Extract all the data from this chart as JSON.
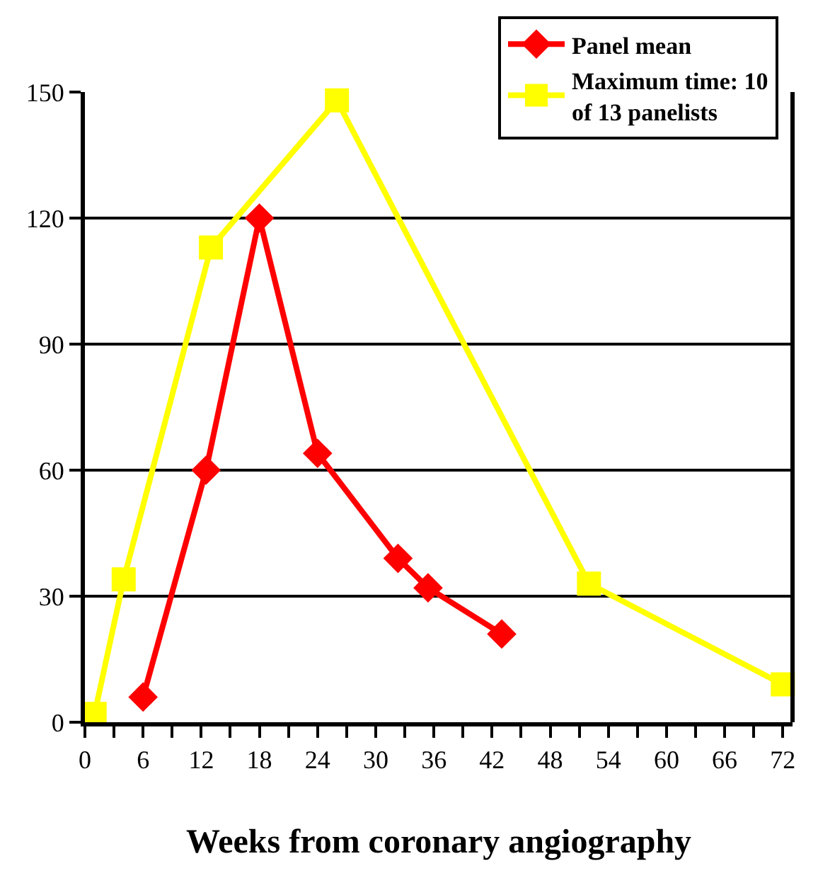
{
  "chart_data": {
    "type": "line",
    "xlabel": "Weeks from coronary angiography",
    "series": [
      {
        "name": "Panel mean",
        "color": "#ff0000",
        "marker": "diamond",
        "x": [
          6,
          12.5,
          18,
          24,
          32.3,
          35.4,
          43
        ],
        "values": [
          6,
          60,
          120,
          64,
          39,
          32,
          21
        ]
      },
      {
        "name": "Maximum time: 10 of 13 panelists",
        "color": "#ffff00",
        "marker": "square",
        "x": [
          1,
          4,
          13,
          26,
          52,
          72
        ],
        "values": [
          2,
          34,
          113,
          148,
          33,
          9
        ]
      }
    ],
    "xlim": [
      0,
      73
    ],
    "xticks": [
      0,
      {
        "value": 3,
        "label": null
      },
      6,
      {
        "value": 9,
        "label": null
      },
      12,
      {
        "value": 15,
        "label": null
      },
      18,
      {
        "value": 21,
        "label": null
      },
      24,
      {
        "value": 27,
        "label": null
      },
      30,
      {
        "value": 33,
        "label": null
      },
      36,
      {
        "value": 39,
        "label": null
      },
      42,
      {
        "value": 45,
        "label": null
      },
      48,
      {
        "value": 51,
        "label": null
      },
      54,
      {
        "value": 57,
        "label": null
      },
      60,
      {
        "value": 63,
        "label": null
      },
      66,
      {
        "value": 69,
        "label": null
      },
      72
    ],
    "ylim": [
      0,
      150
    ],
    "yticks": [
      0,
      30,
      60,
      90,
      120,
      150
    ],
    "grid": "y",
    "legend": "top right",
    "line_style": "solid"
  }
}
